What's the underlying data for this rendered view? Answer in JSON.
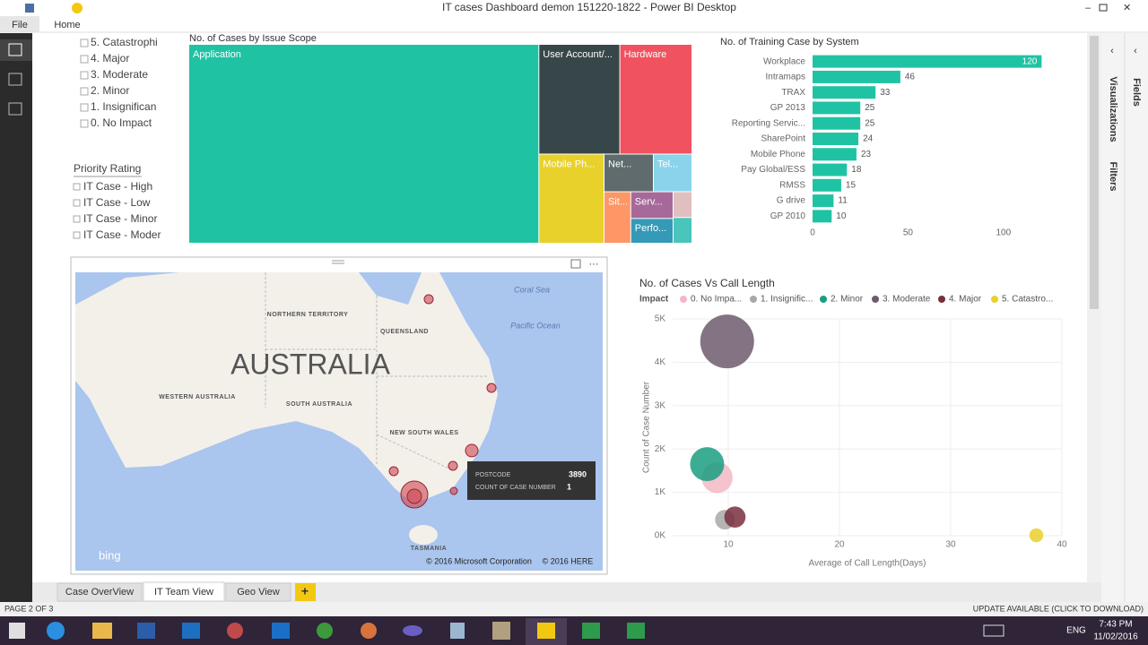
{
  "window": {
    "title": "IT cases Dashboard demon 151220-1822 - Power BI Desktop"
  },
  "ribbon": {
    "tabs": [
      "File",
      "Home"
    ]
  },
  "impact_slicer": {
    "items": [
      "5. Catastrophi",
      "4. Major",
      "3. Moderate",
      "2. Minor",
      "1. Insignifican",
      "0. No Impact"
    ]
  },
  "priority_slicer": {
    "title": "Priority Rating",
    "items": [
      "IT Case - High",
      "IT Case - Low",
      "IT Case - Minor",
      "IT Case - Moder"
    ]
  },
  "map": {
    "title": "AUSTRALIA",
    "regions": [
      "NORTHERN TERRITORY",
      "QUEENSLAND",
      "WESTERN AUSTRALIA",
      "SOUTH AUSTRALIA",
      "NEW SOUTH WALES",
      "TASMANIA"
    ],
    "seas": [
      "Coral Sea",
      "Pacific Ocean"
    ],
    "logo": "bing",
    "credits": [
      "© 2016 Microsoft Corporation",
      "© 2016 HERE"
    ],
    "tooltip": {
      "field1": "POSTCODE",
      "value1": 3890,
      "field2": "COUNT OF CASE NUMBER",
      "value2": 1
    }
  },
  "chart_data": [
    {
      "type": "treemap",
      "title": "No. of Cases by Issue Scope",
      "categories": [
        "Application",
        "User Account/...",
        "Hardware",
        "Mobile Ph...",
        "Net...",
        "Tel...",
        "Sit...",
        "Serv...",
        "Perfo...",
        null,
        null
      ],
      "values": [
        862,
        110,
        98,
        72,
        23,
        18,
        17,
        14,
        13,
        6,
        6
      ],
      "colors": [
        "#1fc3a4",
        "#374649",
        "#f0525f",
        "#e8d12a",
        "#5f6b6d",
        "#8ad4eb",
        "#fe9666",
        "#a66999",
        "#3599b8",
        "#dfbfbf",
        "#4ac5bb"
      ]
    },
    {
      "type": "bar",
      "orientation": "horizontal",
      "title": "No. of Training Case by System",
      "categories": [
        "Workplace",
        "Intramaps",
        "TRAX",
        "GP 2013",
        "Reporting Servic...",
        "SharePoint",
        "Mobile Phone",
        "Pay Global/ESS",
        "RMSS",
        "G drive",
        "GP 2010"
      ],
      "values": [
        120,
        46,
        33,
        25,
        25,
        24,
        23,
        18,
        15,
        11,
        10
      ],
      "color": "#1fc3a4",
      "xlim": [
        0,
        125
      ],
      "xticks": [
        0,
        50,
        100
      ]
    },
    {
      "type": "scatter",
      "title": "No. of Cases Vs Call Length",
      "legend_title": "Impact",
      "x_label": "Average of Call Length(Days)",
      "y_label": "Count of Case Number",
      "xlim": [
        5,
        40
      ],
      "xticks": [
        10,
        20,
        30,
        40
      ],
      "ylim": [
        0,
        5000
      ],
      "yticks": [
        {
          "value": 0,
          "label": "0K"
        },
        {
          "value": 1000,
          "label": "1K"
        },
        {
          "value": 2000,
          "label": "2K"
        },
        {
          "value": 3000,
          "label": "3K"
        },
        {
          "value": 4000,
          "label": "4K"
        },
        {
          "value": 5000,
          "label": "5K"
        }
      ],
      "grid": true,
      "series": [
        {
          "name": "0. No Impa...",
          "color": "#f2b8c6",
          "x": [
            9.0
          ],
          "values": [
            1340
          ],
          "sizes": [
            300
          ]
        },
        {
          "name": "1. Insignific...",
          "color": "#a8a8a8",
          "x": [
            9.7
          ],
          "values": [
            370
          ],
          "sizes": [
            120
          ]
        },
        {
          "name": "2. Minor",
          "color": "#1a9e80",
          "x": [
            8.1
          ],
          "values": [
            1650
          ],
          "sizes": [
            360
          ]
        },
        {
          "name": "3. Moderate",
          "color": "#6f5a6c",
          "x": [
            9.9
          ],
          "values": [
            4480
          ],
          "sizes": [
            900
          ]
        },
        {
          "name": "4. Major",
          "color": "#7a2e3d",
          "x": [
            10.6
          ],
          "values": [
            430
          ],
          "sizes": [
            140
          ]
        },
        {
          "name": "5. Catastro...",
          "color": "#e8d12a",
          "x": [
            37.7
          ],
          "values": [
            10
          ],
          "sizes": [
            60
          ]
        }
      ]
    }
  ],
  "page_tabs": [
    "Case OverView",
    "IT Team View",
    "Geo View",
    "+"
  ],
  "side_panel": [
    "Visualizations",
    "Filters",
    "Fields"
  ],
  "status": {
    "page": "PAGE 2 OF 3",
    "update": "UPDATE AVAILABLE (CLICK TO DOWNLOAD)"
  },
  "taskbar": {
    "language": "ENG",
    "time": "7:43 PM",
    "date": "11/02/2016"
  }
}
